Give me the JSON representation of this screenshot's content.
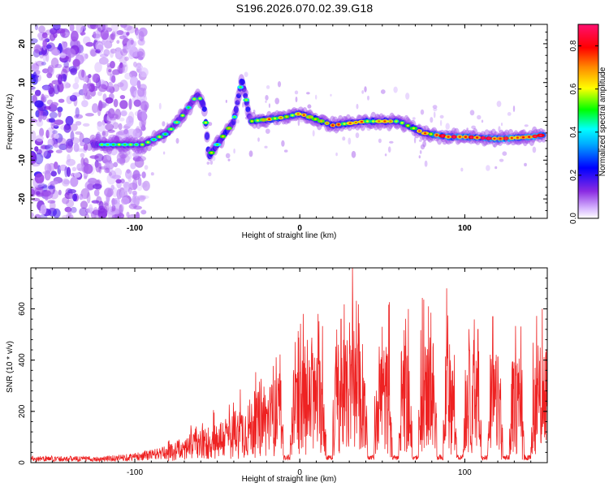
{
  "title": "S196.2026.070.02.39.G18",
  "chart_data": [
    {
      "type": "heatmap",
      "name": "spectrogram",
      "xlabel": "Height of straight line (km)",
      "ylabel": "Frequency (Hz)",
      "xlim": [
        -163,
        150
      ],
      "ylim": [
        -25,
        25
      ],
      "xticks": [
        -100,
        0,
        100
      ],
      "yticks": [
        -20,
        -10,
        0,
        10,
        20
      ],
      "colorbar": {
        "label": "Normalized spectral amplitude",
        "range": [
          0.0,
          0.9
        ],
        "ticks": [
          0.0,
          0.2,
          0.4,
          0.6,
          0.8
        ],
        "colors": [
          "#ffffff",
          "#cc99ff",
          "#6600cc",
          "#0000ff",
          "#00ffff",
          "#00ff00",
          "#ffff00",
          "#ff8800",
          "#ff0000",
          "#ff1493"
        ]
      },
      "trace": {
        "description_points_x": [
          -120,
          -95,
          -80,
          -70,
          -62,
          -58,
          -55,
          -50,
          -40,
          -35,
          -30,
          -10,
          0,
          20,
          40,
          60,
          75,
          90,
          100,
          120,
          140,
          148
        ],
        "description_points_y": [
          -6,
          -6,
          -3,
          2,
          7,
          4,
          -9,
          -6,
          0,
          11,
          0,
          1,
          2,
          -1,
          0,
          0,
          -3,
          -4,
          -4,
          -4.5,
          -4,
          -3.5
        ]
      }
    },
    {
      "type": "line",
      "name": "snr",
      "xlabel": "Height of straight line (km)",
      "ylabel": "SNR (10 * v/v)",
      "xlim": [
        -163,
        150
      ],
      "ylim": [
        0,
        760
      ],
      "xticks": [
        -100,
        0,
        100
      ],
      "yticks": [
        0,
        200,
        400,
        600
      ],
      "color": "#ee2222",
      "envelope": {
        "x": [
          -163,
          -120,
          -100,
          -80,
          -60,
          -40,
          -20,
          0,
          20,
          40,
          60,
          80,
          100,
          120,
          140,
          150
        ],
        "y": [
          25,
          22,
          35,
          60,
          110,
          170,
          260,
          340,
          400,
          420,
          380,
          420,
          380,
          360,
          330,
          430
        ]
      },
      "peaks": [
        {
          "x": 32,
          "y": 760
        },
        {
          "x": 89,
          "y": 680
        },
        {
          "x": 78,
          "y": 610
        },
        {
          "x": 147,
          "y": 600
        },
        {
          "x": 2,
          "y": 580
        },
        {
          "x": 11,
          "y": 580
        },
        {
          "x": 117,
          "y": 570
        },
        {
          "x": 50,
          "y": 530
        },
        {
          "x": 25,
          "y": 560
        },
        {
          "x": 108,
          "y": 520
        }
      ],
      "dips": [
        -8,
        18,
        43,
        58,
        70,
        85,
        97,
        112,
        125,
        138
      ]
    }
  ]
}
